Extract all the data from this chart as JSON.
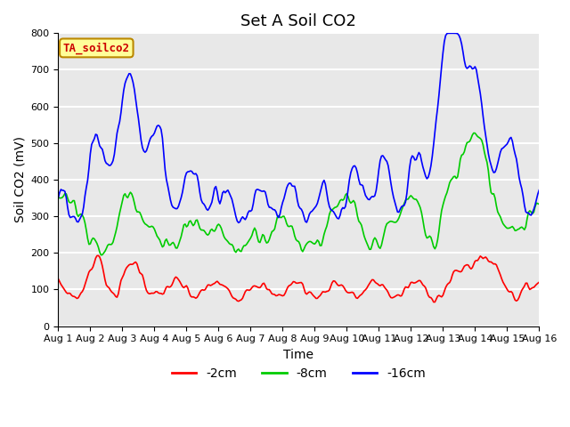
{
  "title": "Set A Soil CO2",
  "xlabel": "Time",
  "ylabel": "Soil CO2 (mV)",
  "ylim": [
    0,
    800
  ],
  "xlim": [
    0,
    360
  ],
  "xtick_positions": [
    0,
    24,
    48,
    72,
    96,
    120,
    144,
    168,
    192,
    216,
    240,
    264,
    288,
    312,
    336,
    360
  ],
  "xtick_labels": [
    "Aug 1",
    "Aug 2",
    "Aug 3",
    "Aug 4",
    "Aug 5",
    "Aug 6",
    "Aug 7",
    "Aug 8",
    "Aug 9",
    "Aug 10",
    "Aug 11",
    "Aug 12",
    "Aug 13",
    "Aug 14",
    "Aug 15",
    "Aug 16"
  ],
  "ytick_positions": [
    0,
    100,
    200,
    300,
    400,
    500,
    600,
    700,
    800
  ],
  "line_colors": [
    "#ff0000",
    "#00cc00",
    "#0000ff"
  ],
  "line_labels": [
    "-2cm",
    "-8cm",
    "-16cm"
  ],
  "legend_label": "TA_soilco2",
  "legend_label_color": "#cc0000",
  "legend_box_color": "#ffff99",
  "background_color": "#e8e8e8",
  "grid_color": "#ffffff",
  "title_fontsize": 13,
  "axis_fontsize": 10,
  "tick_fontsize": 8,
  "legend_fontsize": 10,
  "linewidth": 1.2
}
